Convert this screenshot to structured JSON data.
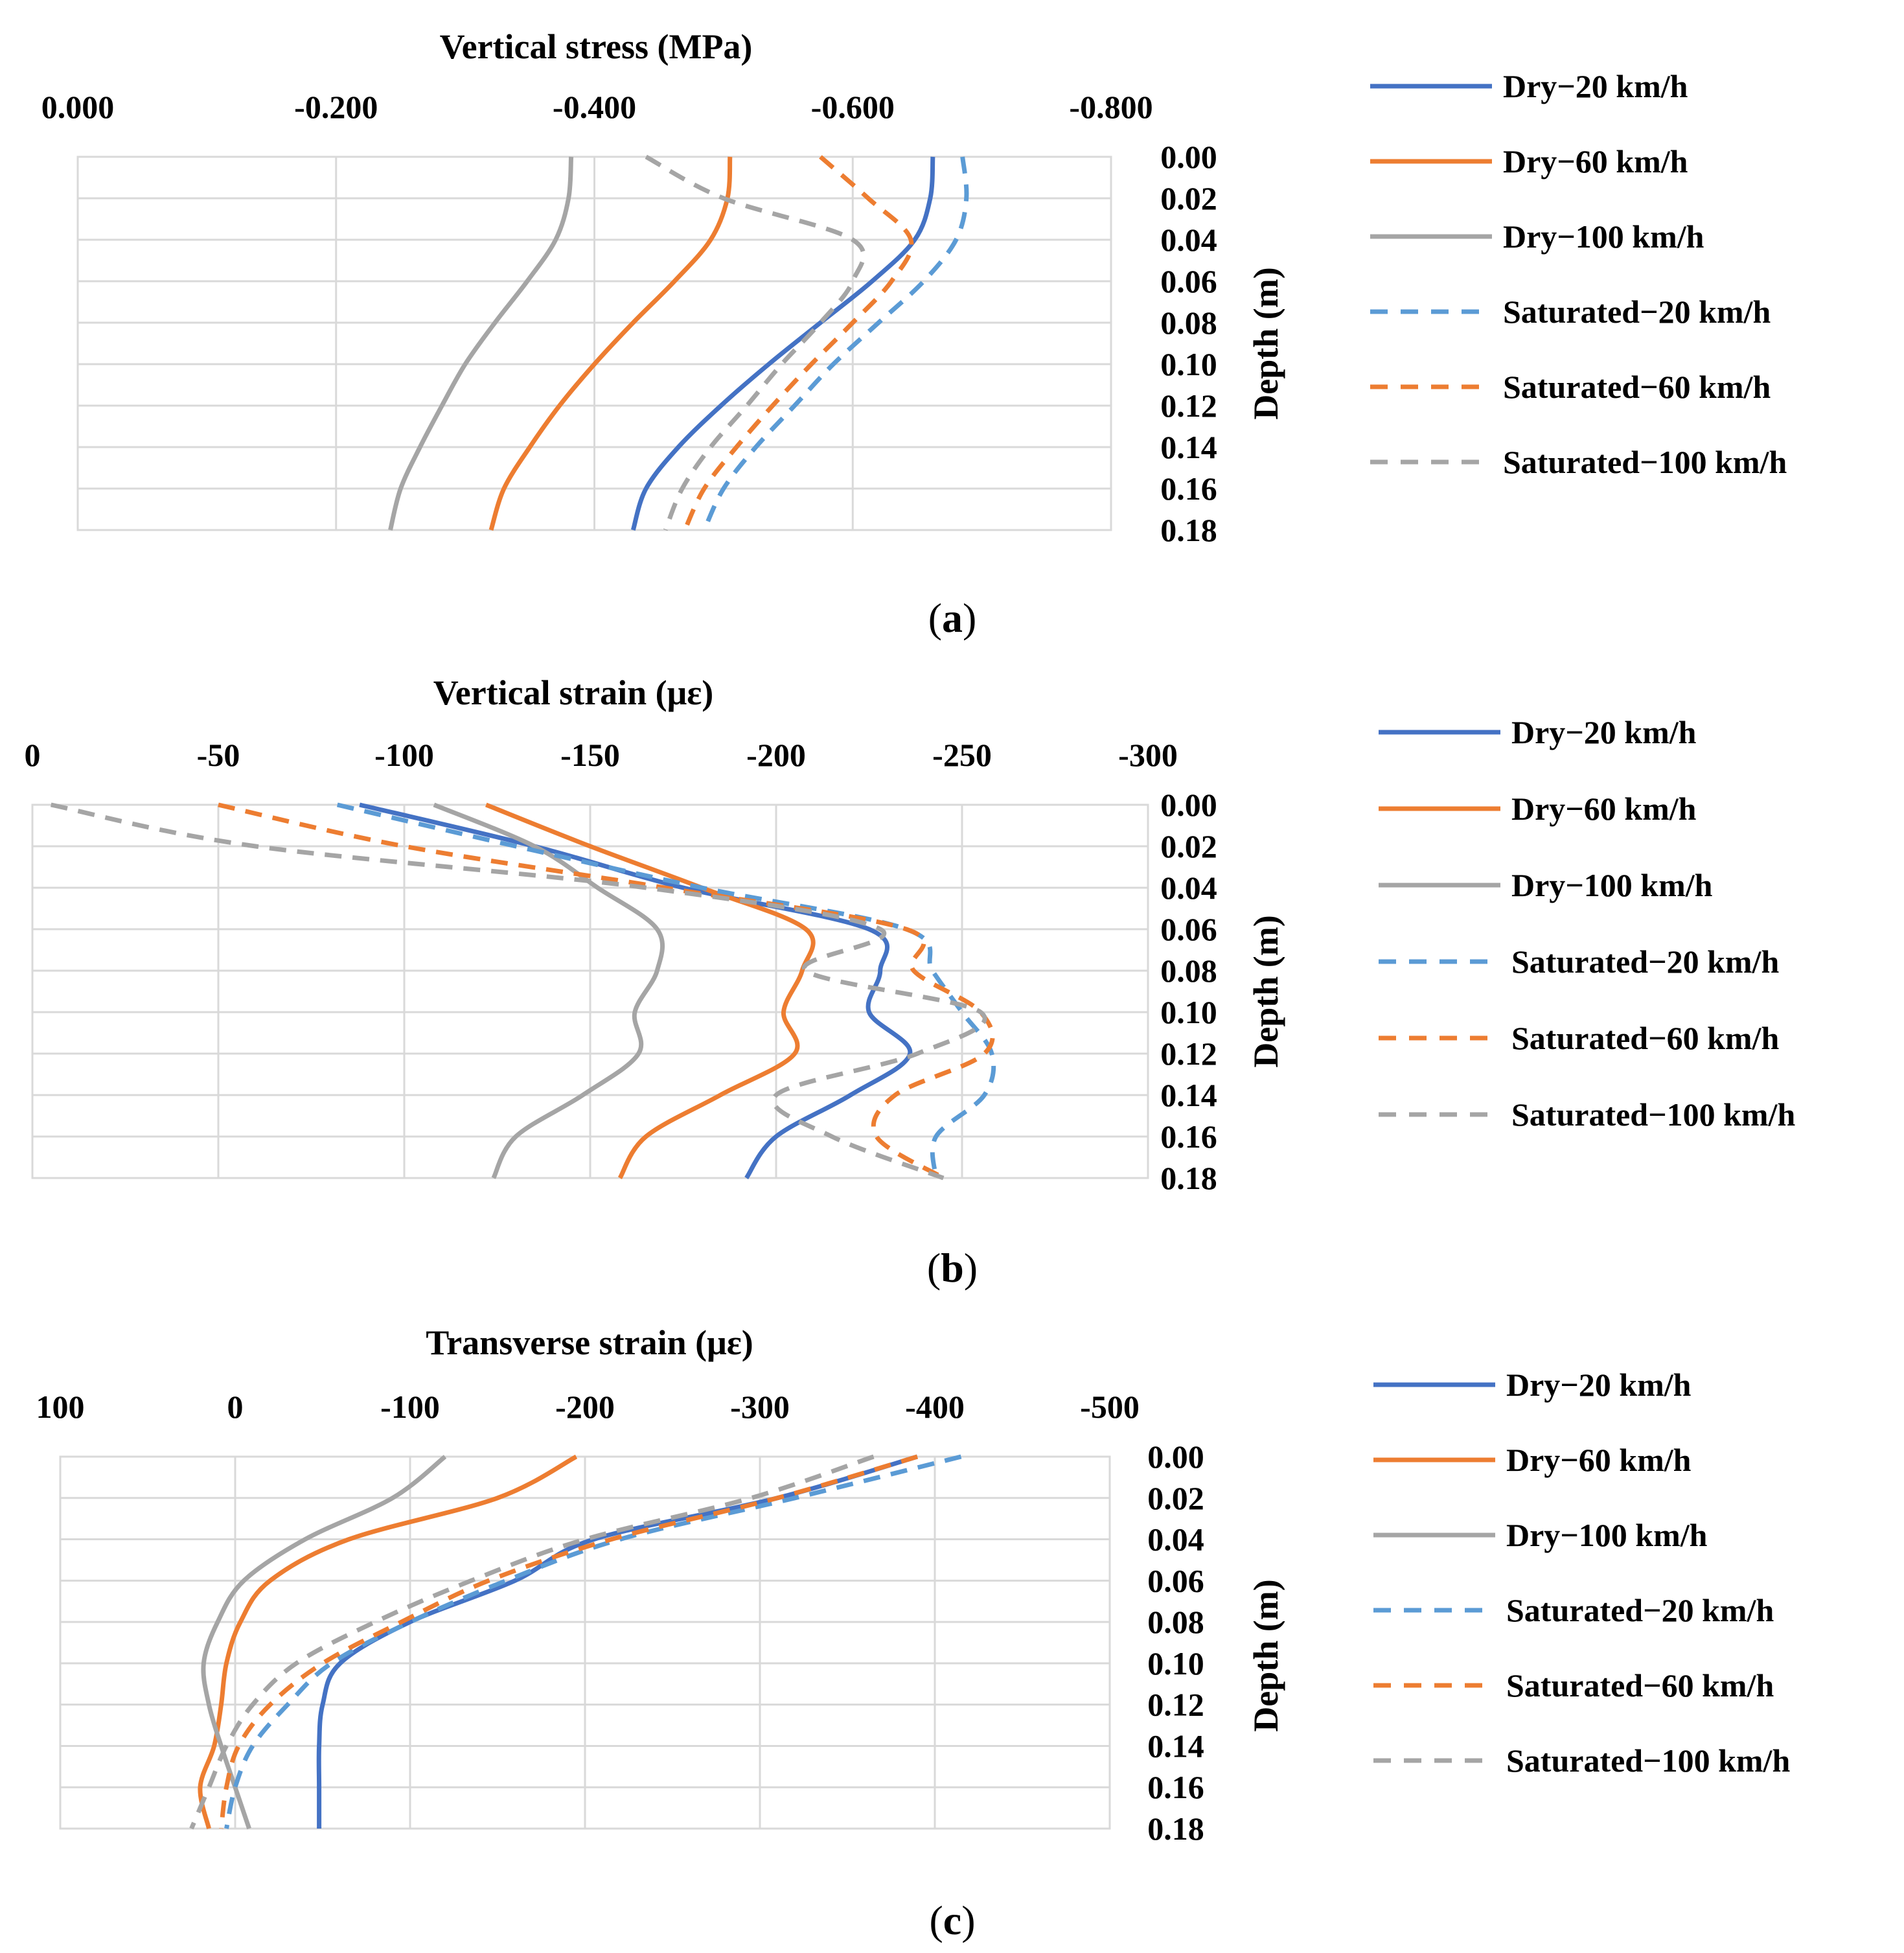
{
  "series_styles": [
    {
      "name": "Dry−20 km/h",
      "color": "#4472C4",
      "dash": false
    },
    {
      "name": "Dry−60 km/h",
      "color": "#ED7D31",
      "dash": false
    },
    {
      "name": "Dry−100 km/h",
      "color": "#A5A5A5",
      "dash": false
    },
    {
      "name": "Saturated−20 km/h",
      "color": "#5B9BD5",
      "dash": true
    },
    {
      "name": "Saturated−60 km/h",
      "color": "#ED7D31",
      "dash": true
    },
    {
      "name": "Saturated−100 km/h",
      "color": "#A5A5A5",
      "dash": true
    }
  ],
  "chart_data": [
    {
      "panel": "(a)",
      "type": "line",
      "title": "Vertical stress (MPa)",
      "xlabel": "Vertical stress (MPa)",
      "ylabel": "Depth (m)",
      "xlim": [
        0,
        -0.8
      ],
      "x_ticks": [
        0,
        -0.2,
        -0.4,
        -0.6,
        -0.8
      ],
      "x_tick_labels": [
        "0.000",
        "-0.200",
        "-0.400",
        "-0.600",
        "-0.800"
      ],
      "ylim": [
        0,
        0.18
      ],
      "y_ticks": [
        0,
        0.02,
        0.04,
        0.06,
        0.08,
        0.1,
        0.12,
        0.14,
        0.16,
        0.18
      ],
      "y_tick_labels": [
        "0.00",
        "0.02",
        "0.04",
        "0.06",
        "0.08",
        "0.10",
        "0.12",
        "0.14",
        "0.16",
        "0.18"
      ],
      "legend": [
        "Dry−20 km/h",
        "Dry−60 km/h",
        "Dry−100 km/h",
        "Saturated−20 km/h",
        "Saturated−60 km/h",
        "Saturated−100 km/h"
      ],
      "legend_position": "right",
      "grid": true,
      "depth": [
        0,
        0.02,
        0.04,
        0.06,
        0.08,
        0.1,
        0.12,
        0.14,
        0.16,
        0.18
      ],
      "series": [
        {
          "name": "Dry−20 km/h",
          "values": [
            -0.662,
            -0.66,
            -0.648,
            -0.615,
            -0.575,
            -0.535,
            -0.498,
            -0.465,
            -0.44,
            -0.43
          ]
        },
        {
          "name": "Dry−60 km/h",
          "values": [
            -0.505,
            -0.503,
            -0.49,
            -0.462,
            -0.43,
            -0.4,
            -0.373,
            -0.35,
            -0.33,
            -0.32
          ]
        },
        {
          "name": "Dry−100 km/h",
          "values": [
            -0.382,
            -0.38,
            -0.37,
            -0.348,
            -0.323,
            -0.3,
            -0.282,
            -0.265,
            -0.25,
            -0.242
          ]
        },
        {
          "name": "Saturated−20 km/h",
          "values": [
            -0.685,
            -0.688,
            -0.68,
            -0.655,
            -0.62,
            -0.585,
            -0.555,
            -0.525,
            -0.5,
            -0.485
          ]
        },
        {
          "name": "Saturated−60 km/h",
          "values": [
            -0.575,
            -0.612,
            -0.645,
            -0.63,
            -0.6,
            -0.568,
            -0.538,
            -0.51,
            -0.485,
            -0.47
          ]
        },
        {
          "name": "Saturated−100 km/h",
          "values": [
            -0.44,
            -0.5,
            -0.6,
            -0.6,
            -0.575,
            -0.545,
            -0.518,
            -0.49,
            -0.468,
            -0.455
          ]
        }
      ]
    },
    {
      "panel": "(b)",
      "type": "line",
      "title": "Vertical strain (με)",
      "xlabel": "Vertical strain (με)",
      "ylabel": "Depth (m)",
      "xlim": [
        0,
        -300
      ],
      "x_ticks": [
        0,
        -50,
        -100,
        -150,
        -200,
        -250,
        -300
      ],
      "x_tick_labels": [
        "0",
        "-50",
        "-100",
        "-150",
        "-200",
        "-250",
        "-300"
      ],
      "ylim": [
        0,
        0.18
      ],
      "y_ticks": [
        0,
        0.02,
        0.04,
        0.06,
        0.08,
        0.1,
        0.12,
        0.14,
        0.16,
        0.18
      ],
      "y_tick_labels": [
        "0.00",
        "0.02",
        "0.04",
        "0.06",
        "0.08",
        "0.10",
        "0.12",
        "0.14",
        "0.16",
        "0.18"
      ],
      "legend": [
        "Dry−20 km/h",
        "Dry−60 km/h",
        "Dry−100 km/h",
        "Saturated−20 km/h",
        "Saturated−60 km/h",
        "Saturated−100 km/h"
      ],
      "legend_position": "right",
      "grid": true,
      "depth": [
        0,
        0.02,
        0.04,
        0.06,
        0.08,
        0.1,
        0.12,
        0.14,
        0.16,
        0.18
      ],
      "series": [
        {
          "name": "Dry−20 km/h",
          "values": [
            -88,
            -135,
            -175,
            -225,
            -228,
            -225,
            -236,
            -220,
            -200,
            -192
          ]
        },
        {
          "name": "Dry−60 km/h",
          "values": [
            -122,
            -150,
            -180,
            -208,
            -207,
            -202,
            -205,
            -185,
            -165,
            -158
          ]
        },
        {
          "name": "Dry−100 km/h",
          "values": [
            -108,
            -135,
            -152,
            -168,
            -168,
            -162,
            -163,
            -148,
            -130,
            -124
          ]
        },
        {
          "name": "Saturated−20 km/h",
          "values": [
            -82,
            -130,
            -180,
            -235,
            -242,
            -250,
            -258,
            -256,
            -243,
            -243
          ]
        },
        {
          "name": "Saturated−60 km/h",
          "values": [
            -50,
            -100,
            -170,
            -235,
            -237,
            -255,
            -256,
            -232,
            -227,
            -245
          ]
        },
        {
          "name": "Saturated−100 km/h",
          "values": [
            -5,
            -60,
            -165,
            -228,
            -208,
            -255,
            -238,
            -200,
            -215,
            -245
          ]
        }
      ]
    },
    {
      "panel": "(c)",
      "type": "line",
      "title": "Transverse strain (με)",
      "xlabel": "Transverse strain (με)",
      "ylabel": "Depth (m)",
      "xlim": [
        100,
        -500
      ],
      "x_ticks": [
        100,
        0,
        -100,
        -200,
        -300,
        -400,
        -500
      ],
      "x_tick_labels": [
        "100",
        "0",
        "-100",
        "-200",
        "-300",
        "-400",
        "-500"
      ],
      "ylim": [
        0,
        0.18
      ],
      "y_ticks": [
        0,
        0.02,
        0.04,
        0.06,
        0.08,
        0.1,
        0.12,
        0.14,
        0.16,
        0.18
      ],
      "y_tick_labels": [
        "0.00",
        "0.02",
        "0.04",
        "0.06",
        "0.08",
        "0.10",
        "0.12",
        "0.14",
        "0.16",
        "0.18"
      ],
      "legend": [
        "Dry−20 km/h",
        "Dry−60 km/h",
        "Dry−100 km/h",
        "Saturated−20 km/h",
        "Saturated−60 km/h",
        "Saturated−100 km/h"
      ],
      "legend_position": "right",
      "grid": true,
      "depth": [
        0,
        0.02,
        0.04,
        0.06,
        0.08,
        0.1,
        0.12,
        0.14,
        0.16,
        0.18
      ],
      "series": [
        {
          "name": "Dry−20 km/h",
          "values": [
            -390,
            -310,
            -205,
            -160,
            -100,
            -60,
            -50,
            -48,
            -48,
            -48
          ]
        },
        {
          "name": "Dry−60 km/h",
          "values": [
            -195,
            -150,
            -65,
            -20,
            -3,
            5,
            8,
            12,
            20,
            15
          ]
        },
        {
          "name": "Dry−100 km/h",
          "values": [
            -120,
            -90,
            -40,
            -5,
            10,
            18,
            15,
            8,
            0,
            -8
          ]
        },
        {
          "name": "Saturated−20 km/h",
          "values": [
            -415,
            -320,
            -220,
            -155,
            -100,
            -55,
            -30,
            -10,
            0,
            5
          ]
        },
        {
          "name": "Saturated−60 km/h",
          "values": [
            -390,
            -310,
            -215,
            -145,
            -95,
            -50,
            -20,
            -2,
            5,
            8
          ]
        },
        {
          "name": "Saturated−100 km/h",
          "values": [
            -365,
            -295,
            -200,
            -135,
            -80,
            -35,
            -10,
            5,
            15,
            25
          ]
        }
      ]
    }
  ]
}
